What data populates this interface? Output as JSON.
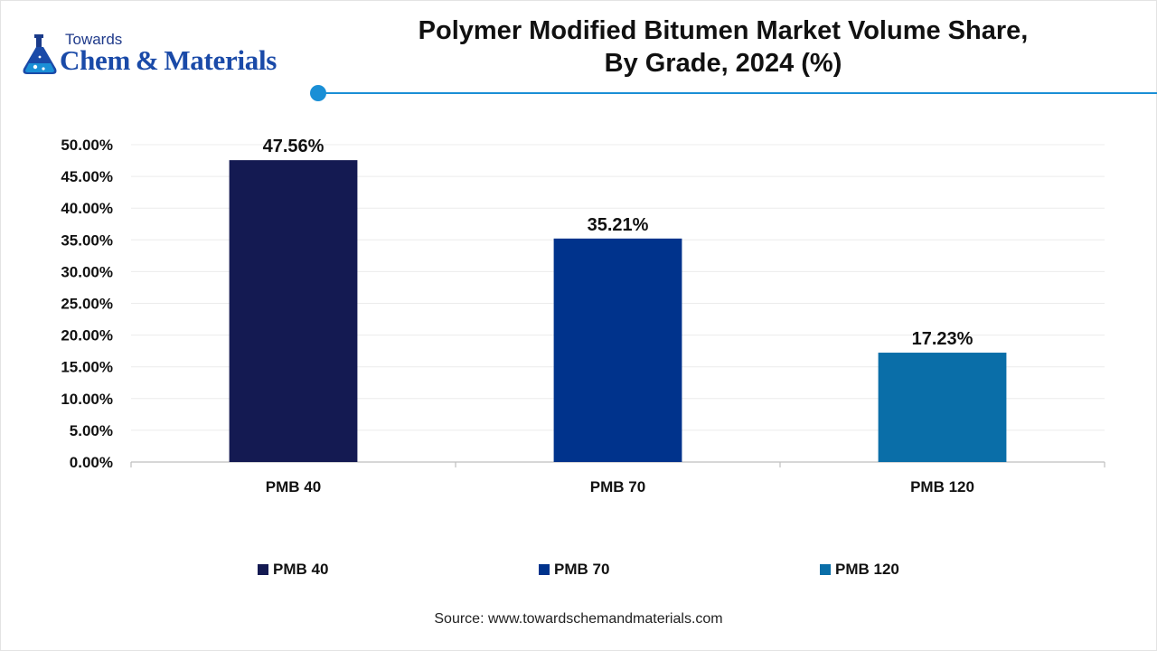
{
  "logo": {
    "top_text": "Towards",
    "main_text": "Chem & Materials"
  },
  "header": {
    "title_line1": "Polymer Modified Bitumen Market Volume Share,",
    "title_line2": "By Grade, 2024 (%)"
  },
  "colors": {
    "accent": "#1a8fd6",
    "pmb40": "#141a52",
    "pmb70": "#00338c",
    "pmb120": "#0a6ea8"
  },
  "chart_data": {
    "type": "bar",
    "title": "Polymer Modified Bitumen Market Volume Share, By Grade, 2024 (%)",
    "categories": [
      "PMB 40",
      "PMB 70",
      "PMB 120"
    ],
    "values": [
      47.56,
      35.21,
      17.23
    ],
    "data_labels": [
      "47.56%",
      "35.21%",
      "17.23%"
    ],
    "ylim": [
      0,
      50
    ],
    "yticks": [
      "0.00%",
      "5.00%",
      "10.00%",
      "15.00%",
      "20.00%",
      "25.00%",
      "30.00%",
      "35.00%",
      "40.00%",
      "45.00%",
      "50.00%"
    ],
    "grid": true,
    "legend": [
      "PMB 40",
      "PMB 70",
      "PMB 120"
    ],
    "legend_position": "bottom"
  },
  "source": "Source: www.towardschemandmaterials.com"
}
